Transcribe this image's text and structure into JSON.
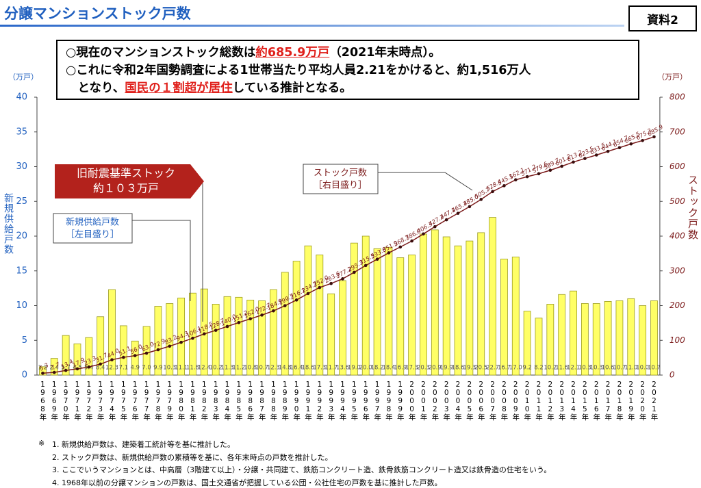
{
  "header": {
    "title": "分譲マンションストック戸数",
    "doc_label": "資料2"
  },
  "summary": {
    "lines": [
      [
        {
          "text": "○現在のマンションストック総数は"
        },
        {
          "text": "約685.9万戸",
          "highlight": true
        },
        {
          "text": "（2021年末時点）。"
        }
      ],
      [
        {
          "text": "○これに令和2年国勢調査による1世帯当たり平均人員2.21をかけると、約1,516万人"
        }
      ],
      [
        {
          "text": "　となり、"
        },
        {
          "text": "国民の１割超が居住",
          "highlight": true
        },
        {
          "text": "している推計となる。"
        }
      ]
    ]
  },
  "chart_data": {
    "type": "bar_line",
    "y_unit": "（万戸）",
    "y2_unit": "（万戸）",
    "y_label": "新規供給戸数",
    "y2_label": "ストック戸数",
    "categories": [
      "1968年",
      "1969年",
      "1970年",
      "1971年",
      "1972年",
      "1973年",
      "1974年",
      "1975年",
      "1976年",
      "1977年",
      "1978年",
      "1979年",
      "1980年",
      "1981年",
      "1982年",
      "1983年",
      "1984年",
      "1985年",
      "1986年",
      "1987年",
      "1988年",
      "1989年",
      "1990年",
      "1991年",
      "1992年",
      "1993年",
      "1994年",
      "1995年",
      "1996年",
      "1997年",
      "1998年",
      "1999年",
      "2000年",
      "2001年",
      "2002年",
      "2003年",
      "2004年",
      "2005年",
      "2006年",
      "2007年",
      "2008年",
      "2009年",
      "2010年",
      "2011年",
      "2012年",
      "2013年",
      "2014年",
      "2015年",
      "2016年",
      "2017年",
      "2018年",
      "2019年",
      "2020年",
      "2021年"
    ],
    "series": [
      {
        "name": "新規供給戸数",
        "type": "bar",
        "color": "#ffff66",
        "edge": "#9a9a20",
        "values": [
          1.2,
          2.4,
          5.7,
          4.5,
          5.4,
          8.4,
          12.3,
          7.1,
          4.9,
          7.0,
          9.9,
          10.3,
          11.1,
          11.8,
          12.4,
          10.2,
          11.3,
          11.2,
          10.8,
          10.7,
          12.3,
          14.8,
          16.4,
          18.6,
          17.3,
          11.7,
          13.6,
          19.0,
          20.0,
          18.2,
          18.4,
          16.9,
          17.3,
          20.3,
          20.9,
          19.9,
          18.6,
          19.3,
          20.5,
          22.7,
          16.7,
          17.0,
          9.2,
          8.2,
          10.2,
          11.6,
          12.1,
          10.3,
          10.3,
          10.6,
          10.7,
          11.0,
          10.0,
          10.7
        ],
        "value_labels": [
          "1.2",
          "2.4",
          "5.7",
          "4.5",
          "5.4",
          "8.4",
          "12.3",
          "7.1",
          "4.9",
          "7.0",
          "9.9",
          "10.3",
          "11.1",
          "11.8",
          "12.4",
          "10.2",
          "11.3",
          "11.2",
          "10.8",
          "10.7",
          "12.3",
          "14.8",
          "16.4",
          "18.6",
          "17.3",
          "11.7",
          "13.6",
          "19.0",
          "20.0",
          "18.2",
          "18.4",
          "16.9",
          "17.3",
          "20.3",
          "20.9",
          "19.9",
          "18.6",
          "19.3",
          "20.5",
          "22.7",
          "16.7",
          "17.0",
          "9.2",
          "8.2",
          "10.2",
          "11.6",
          "12.1",
          "10.3",
          "10.3",
          "10.6",
          "10.7",
          "11.0",
          "10.0",
          "10.7"
        ]
      },
      {
        "name": "ストック戸数",
        "type": "line",
        "axis": "y2",
        "color": "#7b1a1a",
        "values": [
          5.3,
          7.7,
          13.4,
          17.9,
          23.3,
          31.7,
          44.0,
          51.1,
          56.0,
          63.0,
          72.9,
          83.2,
          94.3,
          106.1,
          118.5,
          128.7,
          140.0,
          151.2,
          162.0,
          172.7,
          184.9,
          199.7,
          216.1,
          234.7,
          252.0,
          263.6,
          277.2,
          295.7,
          315.5,
          333.6,
          351.9,
          368.7,
          386.0,
          406.3,
          427.2,
          447.1,
          465.7,
          485.0,
          505.7,
          528.4,
          545.1,
          562.1,
          571.2,
          579.6,
          589.7,
          601.2,
          613.2,
          623.5,
          633.5,
          644.1,
          654.7,
          665.5,
          675.3,
          685.9
        ],
        "value_labels": [
          "5.3",
          "7.7",
          "13.4",
          "17.9",
          "23.3",
          "31.7",
          "44.0",
          "51.1",
          "56.0",
          "63.0",
          "72.9",
          "83.2",
          "94.3",
          "106.1",
          "118.5",
          "128.7",
          "140.0",
          "151.2",
          "162.0",
          "172.7",
          "184.9",
          "199.7",
          "216.1",
          "234.7",
          "252.0",
          "263.6",
          "277.2",
          "295.7",
          "315.5",
          "333.6",
          "351.9",
          "368.7",
          "386.0",
          "406.3",
          "427.2",
          "447.1",
          "465.7",
          "485.0",
          "505.7",
          "528.4",
          "545.1",
          "562.1",
          "571.2",
          "579.6",
          "589.7",
          "601.2",
          "613.2",
          "623.5",
          "633.5",
          "644.1",
          "654.7",
          "665.5",
          "675.3",
          "685.9"
        ]
      }
    ],
    "ylim": [
      0,
      40
    ],
    "yticks": [
      0,
      5,
      10,
      15,
      20,
      25,
      30,
      35,
      40
    ],
    "y2lim": [
      0,
      800
    ],
    "y2ticks": [
      0,
      100,
      200,
      300,
      400,
      500,
      600,
      700,
      800
    ],
    "grid": false,
    "annotations": {
      "old_standard": [
        "旧耐震基準ストック",
        "約１０３万戸"
      ],
      "bar_note": [
        "新規供給戸数",
        "［左目盛り］"
      ],
      "line_note": [
        "ストック戸数",
        "［右目盛り］"
      ]
    }
  },
  "notes": {
    "marker": "※",
    "items": [
      "1. 新規供給戸数は、建築着工統計等を基に推計した。",
      "2. ストック戸数は、新規供給戸数の累積等を基に、各年末時点の戸数を推計した。",
      "3. ここでいうマンションとは、中高層（3階建て以上）・分譲・共同建て、鉄筋コンクリート造、鉄骨鉄筋コンクリート造又は鉄骨造の住宅をいう。",
      "4. 1968年以前の分譲マンションの戸数は、国土交通省が把握している公団・公社住宅の戸数を基に推計した戸数。"
    ]
  }
}
